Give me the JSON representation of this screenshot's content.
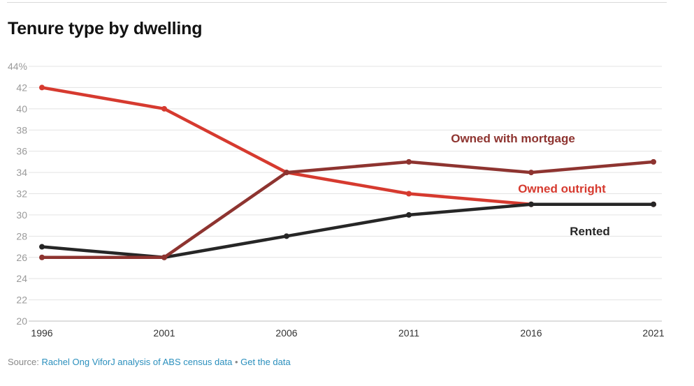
{
  "chart_data": {
    "type": "line",
    "title": "Tenure type by dwelling",
    "categories": [
      "1996",
      "2001",
      "2006",
      "2011",
      "2016",
      "2021"
    ],
    "x": [
      1996,
      2001,
      2006,
      2011,
      2016,
      2021
    ],
    "ylim": [
      20,
      44
    ],
    "y_ticks": [
      20,
      22,
      24,
      26,
      28,
      30,
      32,
      34,
      36,
      38,
      40,
      42,
      44
    ],
    "y_tick_labels": [
      "20",
      "22",
      "24",
      "26",
      "28",
      "30",
      "32",
      "34",
      "36",
      "38",
      "40",
      "42",
      "44%"
    ],
    "grid": true,
    "legend": "inline labels",
    "series": [
      {
        "name": "Owned outright",
        "values": [
          42,
          40,
          34,
          32,
          31,
          31
        ],
        "color": "#d63a2f"
      },
      {
        "name": "Owned with mortgage",
        "values": [
          26,
          26,
          34,
          35,
          34,
          35
        ],
        "color": "#8e3430"
      },
      {
        "name": "Rented",
        "values": [
          27,
          26,
          28,
          30,
          31,
          31
        ],
        "color": "#262626"
      }
    ]
  },
  "source": {
    "prefix": "Source:",
    "credit": "Rachel Ong ViforJ analysis of ABS census data",
    "separator": "•",
    "get_data": "Get the data"
  }
}
